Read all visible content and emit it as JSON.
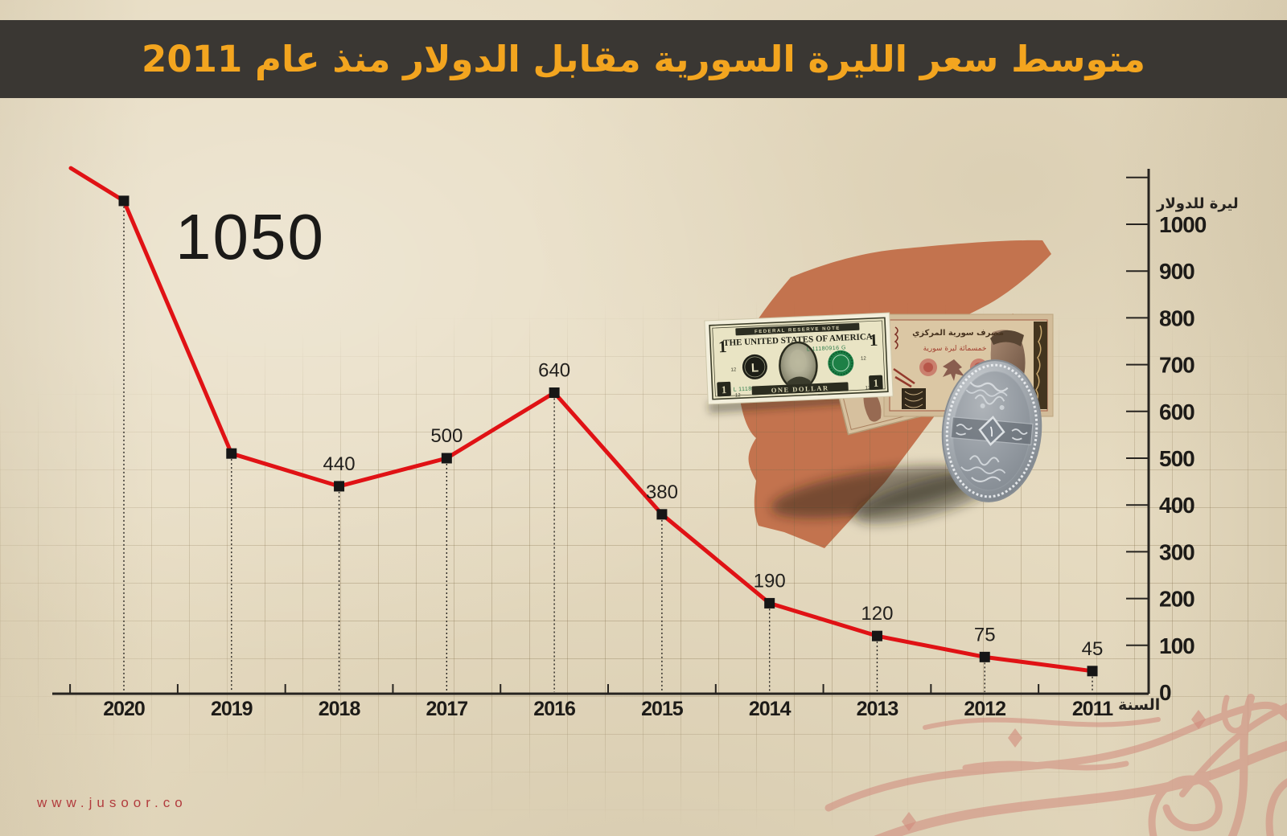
{
  "header": {
    "title": "متوسط سعر الليرة السورية مقابل الدولار منذ عام 2011"
  },
  "chart_data": {
    "type": "line",
    "title": "متوسط سعر الليرة السورية مقابل الدولار منذ عام 2011",
    "x_axis_title": "السنة",
    "y_axis_title": "ليرة للدولار",
    "categories": [
      "2020",
      "2019",
      "2018",
      "2017",
      "2016",
      "2015",
      "2014",
      "2013",
      "2012",
      "2011"
    ],
    "values": [
      1050,
      510,
      440,
      500,
      640,
      380,
      190,
      120,
      75,
      45
    ],
    "point_labels": [
      "1050",
      "",
      "440",
      "500",
      "640",
      "380",
      "190",
      "120",
      "75",
      "45"
    ],
    "highlight_index": 0,
    "highlight_label": "1050",
    "y_ticks": [
      0,
      100,
      200,
      300,
      400,
      500,
      600,
      700,
      800,
      900,
      1000
    ],
    "ylim": [
      0,
      1100
    ],
    "line_color": "#e01215",
    "marker_color": "#161616",
    "marker_shape": "square",
    "grid": true,
    "legend": false
  },
  "footer": {
    "website": "www.jusoor.co"
  },
  "decor": {
    "dollar_bill": {
      "top_banner": "FEDERAL RESERVE NOTE",
      "country": "THE UNITED STATES OF AMERICA",
      "denomination": "ONE DOLLAR",
      "serial": "L 11180916 G",
      "district_letter": "L",
      "district_number": "12",
      "value_numeral": "1"
    },
    "syrian_banknote": {
      "bank_name": "مصرف سورية المركزي",
      "denomination_text": "خمسمائة ليرة سورية"
    },
    "syrian_coin": {
      "center_numeral": "١"
    }
  },
  "colors": {
    "header_bg": "#3a3733",
    "accent_title": "#f3a51f",
    "line_red": "#e01215",
    "map_orange": "#c3734e",
    "url_red": "#b23c3e",
    "swirl_pink": "#d18a7c",
    "paper": "#e7dcc2"
  }
}
